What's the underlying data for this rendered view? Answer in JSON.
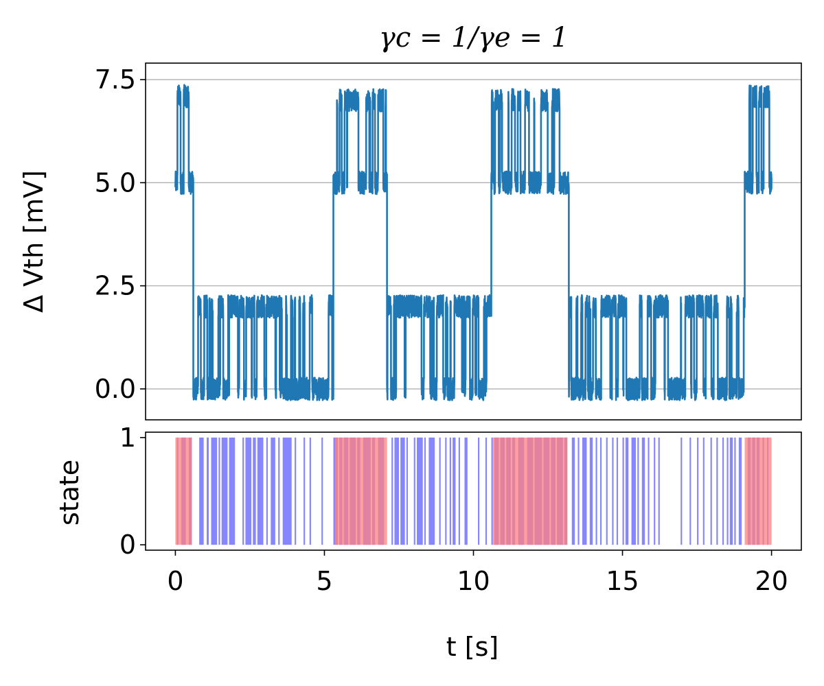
{
  "chart_data": [
    {
      "type": "line",
      "title": "γc = 1/γe = 1",
      "xlabel": "",
      "ylabel": "Δ Vth [mV]",
      "xlim": [
        -1,
        21
      ],
      "ylim": [
        -0.75,
        7.9
      ],
      "x_ticks": [
        0,
        5,
        10,
        15,
        20
      ],
      "y_ticks": [
        0.0,
        2.5,
        5.0,
        7.5
      ],
      "y_tick_labels": [
        "0.0",
        "2.5",
        "5.0",
        "7.5"
      ],
      "grid": "horizontal",
      "color": "#1f77b4",
      "series": [
        {
          "description_of_levels": [
            0.0,
            2.0,
            5.0,
            7.0
          ],
          "segments": [
            {
              "x": [
                0.0,
                0.6
              ],
              "base": 5.0,
              "high": 7.1
            },
            {
              "x": [
                0.6,
                5.3
              ],
              "base": 0.0,
              "high": 2.0
            },
            {
              "x": [
                5.3,
                7.1
              ],
              "base": 5.0,
              "high": 7.0
            },
            {
              "x": [
                7.1,
                10.6
              ],
              "base": 0.0,
              "high": 2.0
            },
            {
              "x": [
                10.6,
                13.2
              ],
              "base": 5.0,
              "high": 7.0
            },
            {
              "x": [
                13.2,
                19.1
              ],
              "base": 0.0,
              "high": 2.0
            },
            {
              "x": [
                19.1,
                20.0
              ],
              "base": 5.0,
              "high": 7.1
            }
          ]
        }
      ]
    },
    {
      "type": "bar",
      "xlabel": "t [s]",
      "ylabel": "state",
      "xlim": [
        -1,
        21
      ],
      "ylim": [
        -0.05,
        1.05
      ],
      "x_ticks": [
        0,
        5,
        10,
        15,
        20
      ],
      "y_ticks": [
        0,
        1
      ],
      "series": [
        {
          "color": "#8080ff",
          "on_intervals": [
            [
              0.05,
              0.1
            ],
            [
              0.2,
              0.35
            ],
            [
              0.45,
              0.55
            ],
            [
              0.8,
              0.95
            ],
            [
              1.05,
              1.12
            ],
            [
              1.2,
              1.4
            ],
            [
              1.45,
              1.5
            ],
            [
              1.55,
              1.75
            ],
            [
              1.8,
              2.0
            ],
            [
              2.25,
              2.3
            ],
            [
              2.35,
              2.55
            ],
            [
              2.6,
              2.7
            ],
            [
              2.75,
              2.95
            ],
            [
              3.05,
              3.1
            ],
            [
              3.2,
              3.35
            ],
            [
              3.45,
              3.5
            ],
            [
              3.6,
              3.9
            ],
            [
              4.0,
              4.05
            ],
            [
              4.3,
              4.35
            ],
            [
              4.5,
              4.55
            ],
            [
              4.9,
              4.95
            ],
            [
              5.3,
              5.45
            ],
            [
              5.5,
              5.6
            ],
            [
              5.65,
              5.8
            ],
            [
              5.85,
              6.05
            ],
            [
              6.1,
              6.2
            ],
            [
              6.3,
              6.55
            ],
            [
              6.6,
              6.7
            ],
            [
              6.8,
              7.0
            ],
            [
              7.25,
              7.3
            ],
            [
              7.35,
              7.5
            ],
            [
              7.55,
              7.7
            ],
            [
              7.75,
              7.8
            ],
            [
              8.0,
              8.05
            ],
            [
              8.1,
              8.3
            ],
            [
              8.35,
              8.4
            ],
            [
              8.5,
              8.7
            ],
            [
              8.85,
              8.9
            ],
            [
              9.05,
              9.1
            ],
            [
              9.2,
              9.25
            ],
            [
              9.3,
              9.4
            ],
            [
              9.5,
              9.55
            ],
            [
              9.7,
              9.8
            ],
            [
              10.15,
              10.2
            ],
            [
              10.4,
              10.45
            ],
            [
              10.6,
              10.65
            ],
            [
              10.7,
              10.85
            ],
            [
              10.9,
              11.05
            ],
            [
              11.1,
              11.25
            ],
            [
              11.3,
              11.4
            ],
            [
              11.5,
              11.7
            ],
            [
              11.8,
              12.0
            ],
            [
              12.05,
              12.3
            ],
            [
              12.35,
              12.55
            ],
            [
              12.6,
              12.75
            ],
            [
              12.8,
              13.0
            ],
            [
              13.05,
              13.15
            ],
            [
              13.3,
              13.4
            ],
            [
              13.5,
              13.55
            ],
            [
              13.65,
              13.8
            ],
            [
              13.9,
              14.0
            ],
            [
              14.1,
              14.15
            ],
            [
              14.25,
              14.3
            ],
            [
              14.45,
              14.5
            ],
            [
              14.65,
              14.7
            ],
            [
              14.8,
              14.85
            ],
            [
              15.0,
              15.05
            ],
            [
              15.1,
              15.2
            ],
            [
              15.3,
              15.45
            ],
            [
              15.5,
              15.55
            ],
            [
              15.65,
              15.75
            ],
            [
              15.85,
              15.9
            ],
            [
              16.05,
              16.1
            ],
            [
              16.2,
              16.25
            ],
            [
              16.95,
              17.0
            ],
            [
              17.25,
              17.3
            ],
            [
              17.5,
              17.55
            ],
            [
              17.7,
              17.75
            ],
            [
              17.95,
              18.0
            ],
            [
              18.15,
              18.2
            ],
            [
              18.35,
              18.4
            ],
            [
              18.5,
              18.55
            ],
            [
              18.6,
              18.7
            ],
            [
              18.75,
              18.8
            ],
            [
              18.9,
              19.0
            ],
            [
              19.2,
              19.3
            ],
            [
              19.35,
              19.45
            ],
            [
              19.5,
              19.6
            ],
            [
              19.7,
              19.75
            ],
            [
              19.85,
              19.9
            ]
          ]
        },
        {
          "color": "#ff8080",
          "on_intervals": [
            [
              0.0,
              0.55
            ],
            [
              5.35,
              7.1
            ],
            [
              10.65,
              13.15
            ],
            [
              19.1,
              20.0
            ]
          ]
        }
      ]
    }
  ],
  "labels": {
    "title": "γc = 1/γe = 1",
    "ylabel_top": "Δ Vth [mV]",
    "ylabel_bottom": "state",
    "xlabel": "t [s]"
  }
}
